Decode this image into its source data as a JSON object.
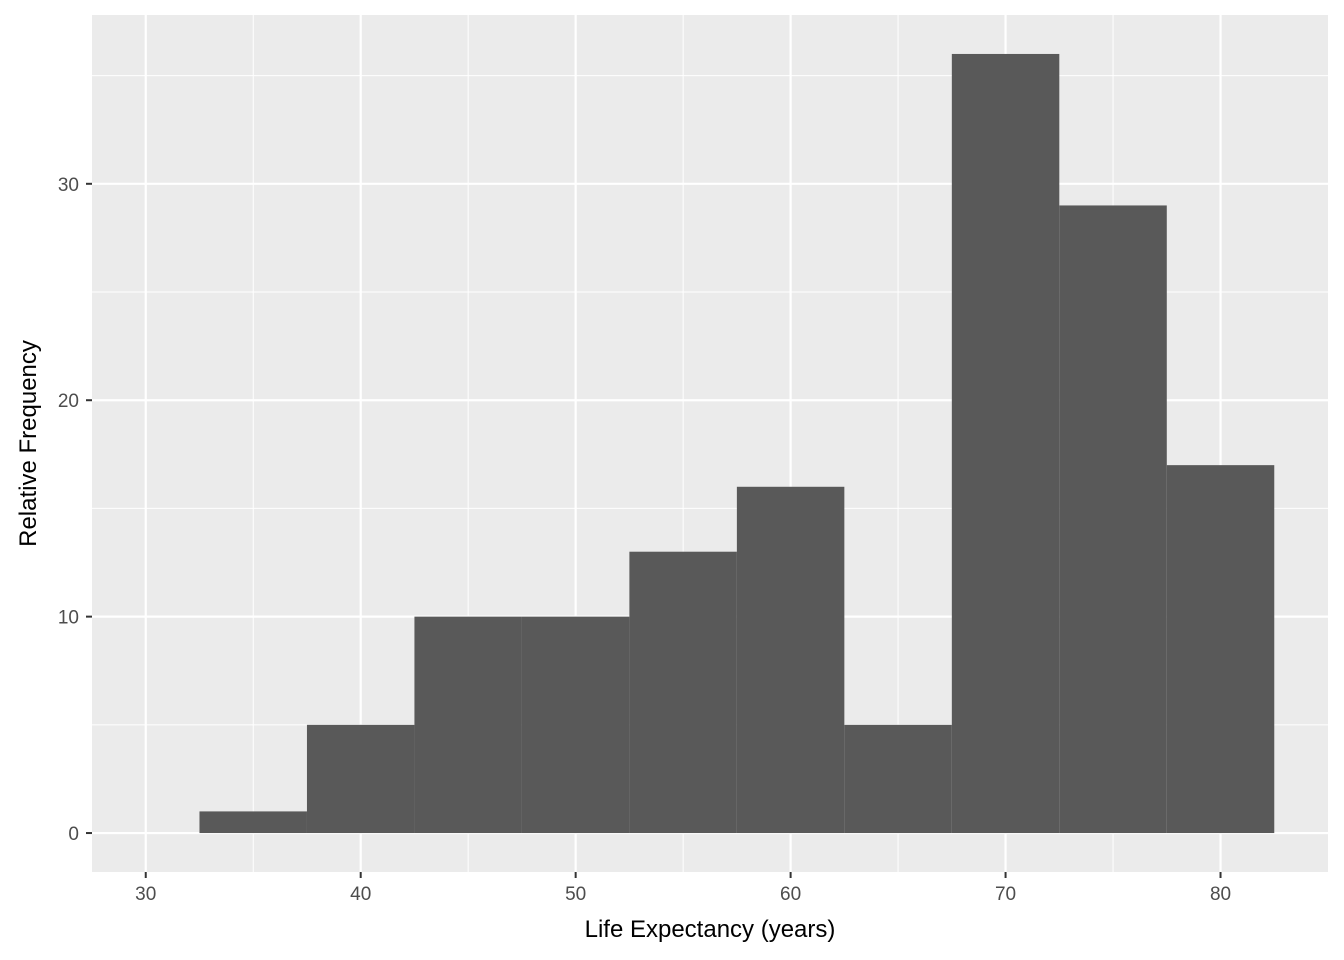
{
  "chart_data": {
    "type": "bar",
    "subtype": "histogram",
    "title": "",
    "xlabel": "Life Expectancy (years)",
    "ylabel": "Relative Frequency",
    "xlim": [
      27.5,
      85
    ],
    "ylim": [
      -1.8,
      37.8
    ],
    "x_ticks": [
      30,
      40,
      50,
      60,
      70,
      80
    ],
    "y_ticks": [
      0,
      10,
      20,
      30
    ],
    "bin_width": 5,
    "bins": [
      {
        "start": 32.5,
        "end": 37.5,
        "value": 1
      },
      {
        "start": 37.5,
        "end": 42.5,
        "value": 5
      },
      {
        "start": 42.5,
        "end": 47.5,
        "value": 10
      },
      {
        "start": 47.5,
        "end": 52.5,
        "value": 10
      },
      {
        "start": 52.5,
        "end": 57.5,
        "value": 13
      },
      {
        "start": 57.5,
        "end": 62.5,
        "value": 16
      },
      {
        "start": 62.5,
        "end": 67.5,
        "value": 5
      },
      {
        "start": 67.5,
        "end": 72.5,
        "value": 36
      },
      {
        "start": 72.5,
        "end": 77.5,
        "value": 29
      },
      {
        "start": 77.5,
        "end": 82.5,
        "value": 17
      }
    ],
    "grid": true,
    "colors": {
      "panel_background": "#ebebeb",
      "grid_major": "#ffffff",
      "bar_fill": "#595959",
      "tick_text": "#4d4d4d",
      "tick_mark": "#333333"
    }
  }
}
